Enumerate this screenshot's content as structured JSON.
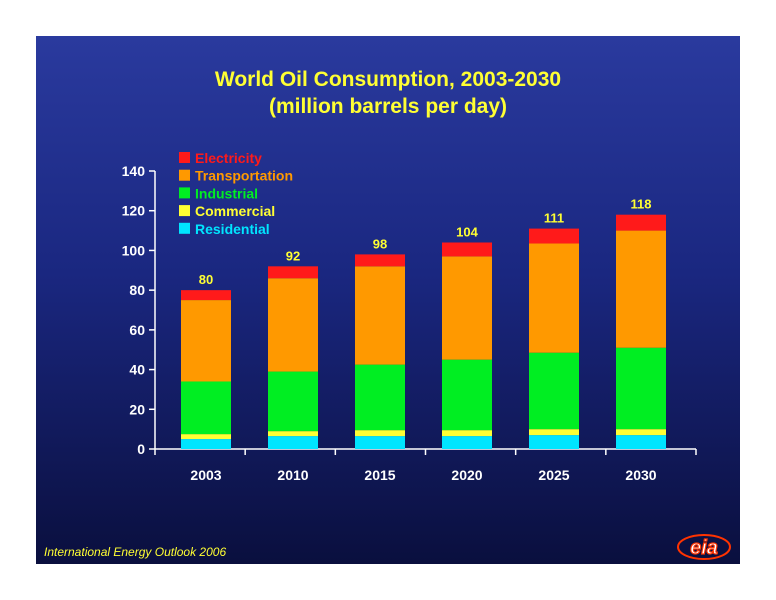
{
  "title": {
    "line1": "World Oil Consumption, 2003-2030",
    "line2": "(million barrels per day)"
  },
  "source": "International Energy Outlook 2006",
  "logo_text": "eia",
  "colors": {
    "Electricity": "#ff1a1a",
    "Transportation": "#ff9900",
    "Industrial": "#00ee22",
    "Commercial": "#ffff33",
    "Residential": "#00e5ff",
    "axis_text": "#ffffff",
    "total_label": "#ffff33"
  },
  "chart_data": {
    "type": "bar",
    "stacked": true,
    "title": "World Oil Consumption, 2003-2030 (million barrels per day)",
    "categories": [
      "2003",
      "2010",
      "2015",
      "2020",
      "2025",
      "2030"
    ],
    "series": [
      {
        "name": "Residential",
        "values": [
          5,
          6.5,
          6.5,
          6.5,
          7,
          7
        ]
      },
      {
        "name": "Commercial",
        "values": [
          2.5,
          2.5,
          3,
          3,
          3,
          3
        ]
      },
      {
        "name": "Industrial",
        "values": [
          26.5,
          30,
          33,
          35.5,
          38.5,
          41
        ]
      },
      {
        "name": "Transportation",
        "values": [
          41,
          47,
          49.5,
          52,
          55,
          59
        ]
      },
      {
        "name": "Electricity",
        "values": [
          5,
          6,
          6,
          7,
          7.5,
          8
        ]
      }
    ],
    "totals": [
      80,
      92,
      98,
      104,
      111,
      118
    ],
    "ylim": [
      0,
      140
    ],
    "yticks": [
      0,
      20,
      40,
      60,
      80,
      100,
      120,
      140
    ],
    "legend_order": [
      "Electricity",
      "Transportation",
      "Industrial",
      "Commercial",
      "Residential"
    ],
    "legend_position": "top-left",
    "grid": false
  }
}
